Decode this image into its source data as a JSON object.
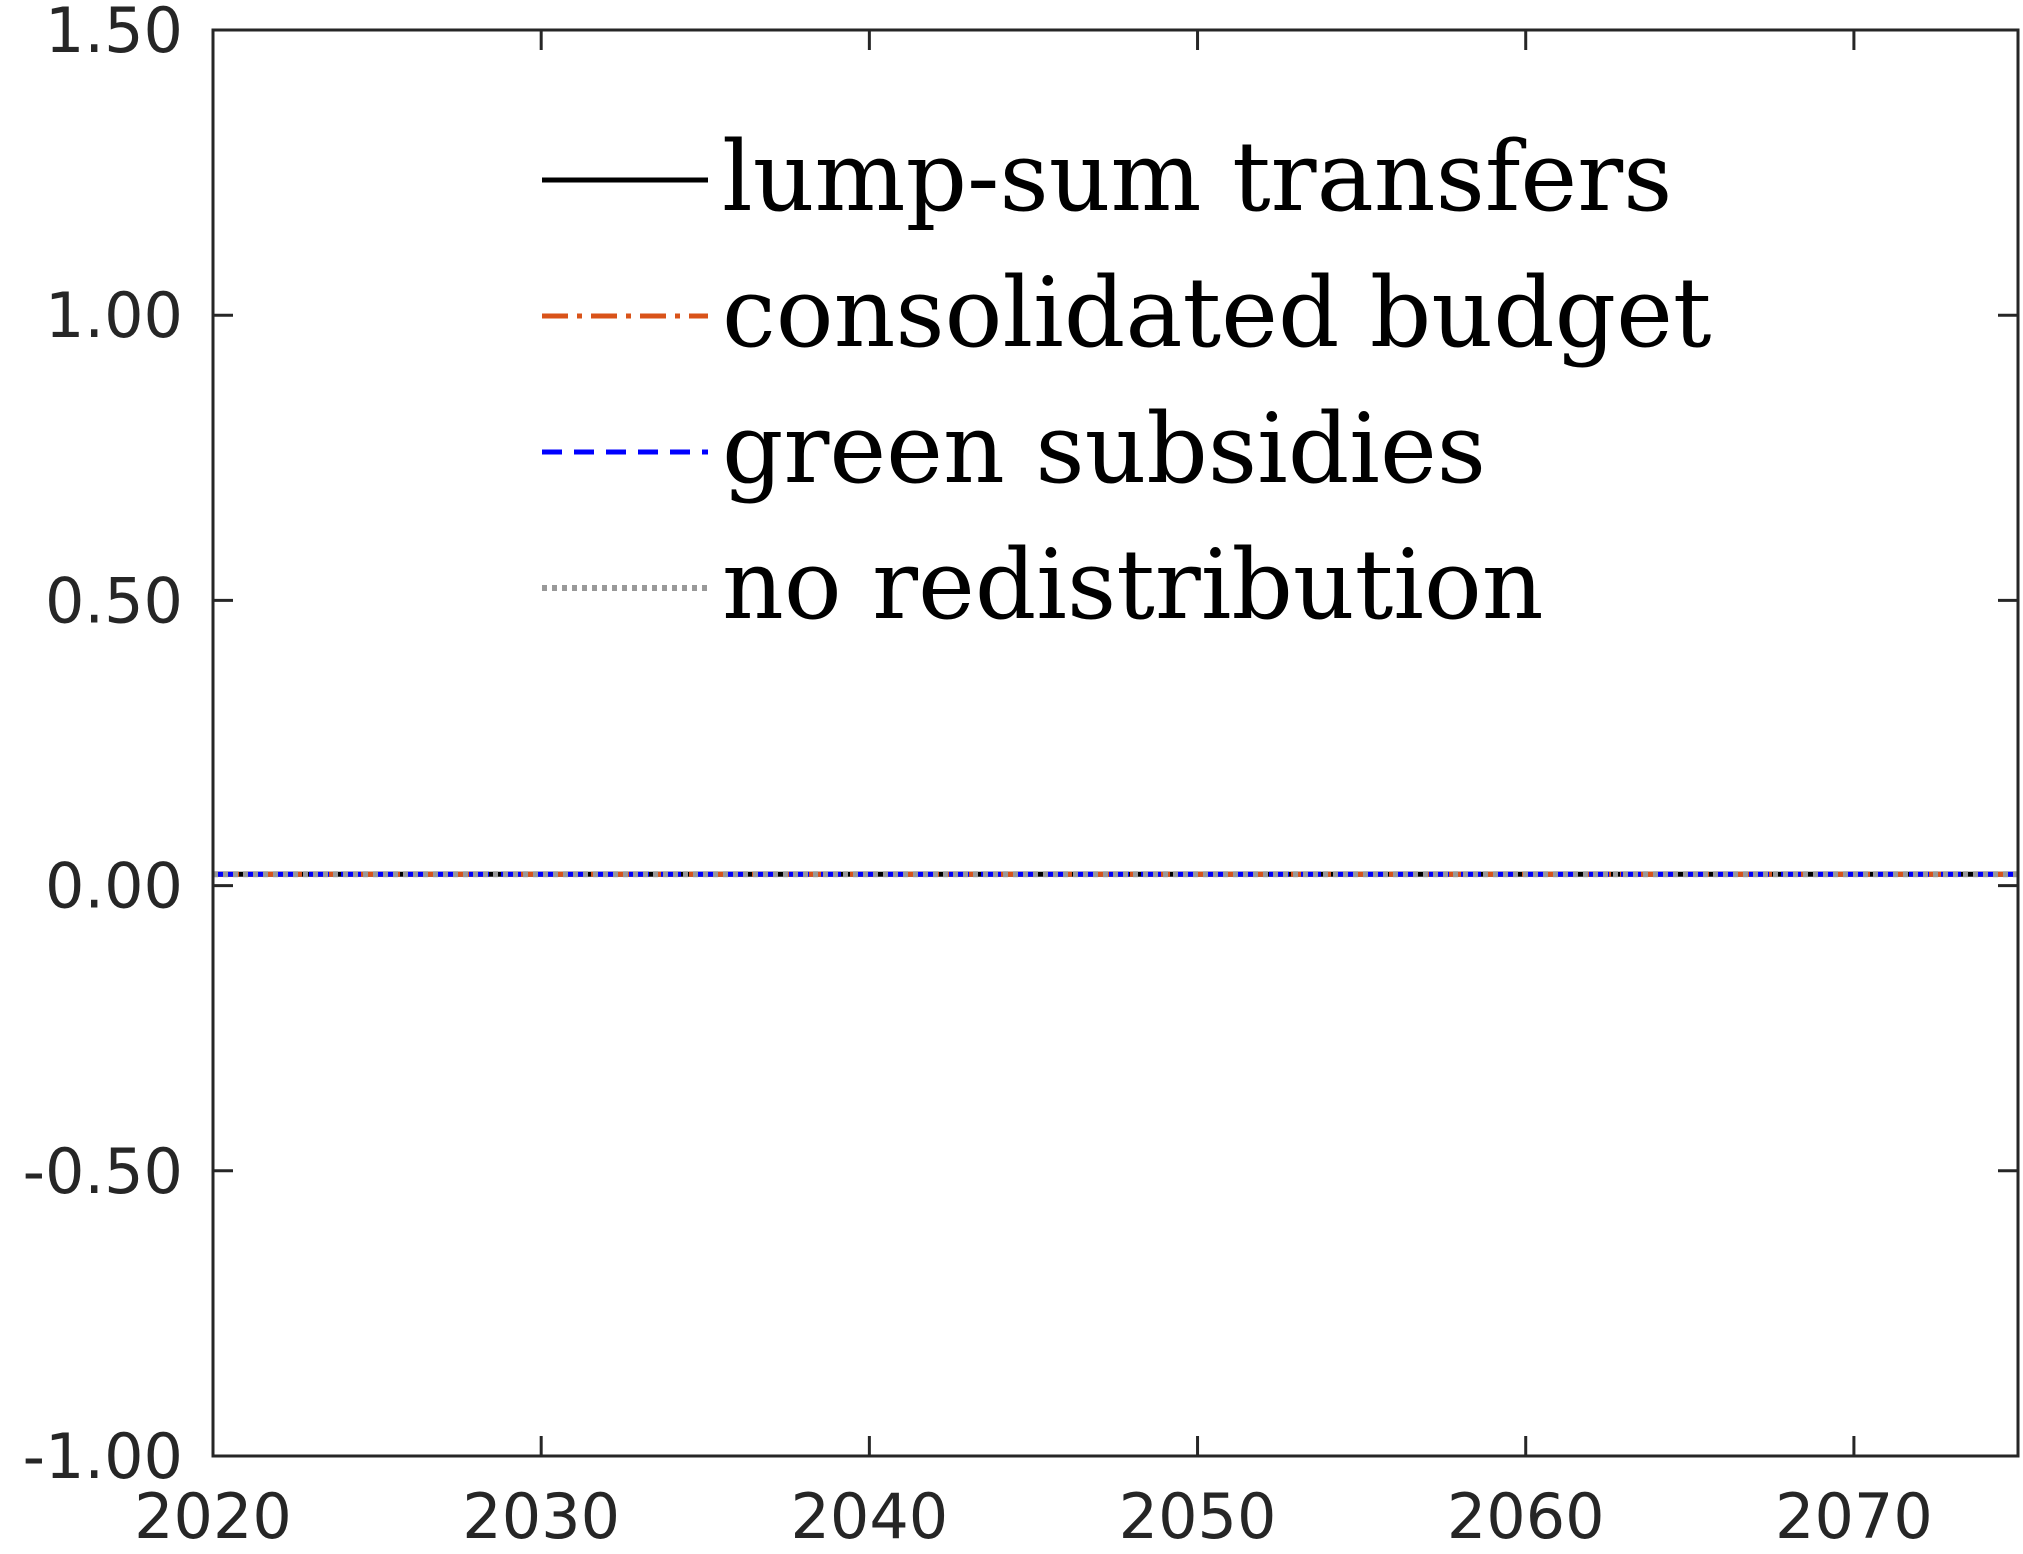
{
  "chart_data": {
    "type": "line",
    "title": "",
    "xlabel": "",
    "ylabel": "",
    "xlim": [
      2020,
      2075
    ],
    "ylim": [
      -1.0,
      1.5
    ],
    "xticks": [
      "2020",
      "2030",
      "2040",
      "2050",
      "2060",
      "2070"
    ],
    "xtick_values": [
      2020,
      2030,
      2040,
      2050,
      2060,
      2070
    ],
    "yticks": [
      "1.50",
      "1.00",
      "0.50",
      "0.00",
      "-0.50",
      "-1.00"
    ],
    "ytick_values": [
      1.5,
      1.0,
      0.5,
      0.0,
      -0.5,
      -1.0
    ],
    "grid": false,
    "legend_position": "top-center",
    "x": [
      2020,
      2075
    ],
    "series": [
      {
        "name": "lump-sum transfers",
        "color": "#000000",
        "style": "solid",
        "values": [
          0.02,
          0.02
        ]
      },
      {
        "name": "consolidated budget",
        "color": "#d95319",
        "style": "dashdot",
        "values": [
          0.02,
          0.02
        ]
      },
      {
        "name": "green subsidies",
        "color": "#0000ff",
        "style": "dashed",
        "values": [
          0.02,
          0.02
        ]
      },
      {
        "name": "no redistribution",
        "color": "#999999",
        "style": "dotted",
        "values": [
          0.02,
          0.02
        ]
      }
    ]
  }
}
